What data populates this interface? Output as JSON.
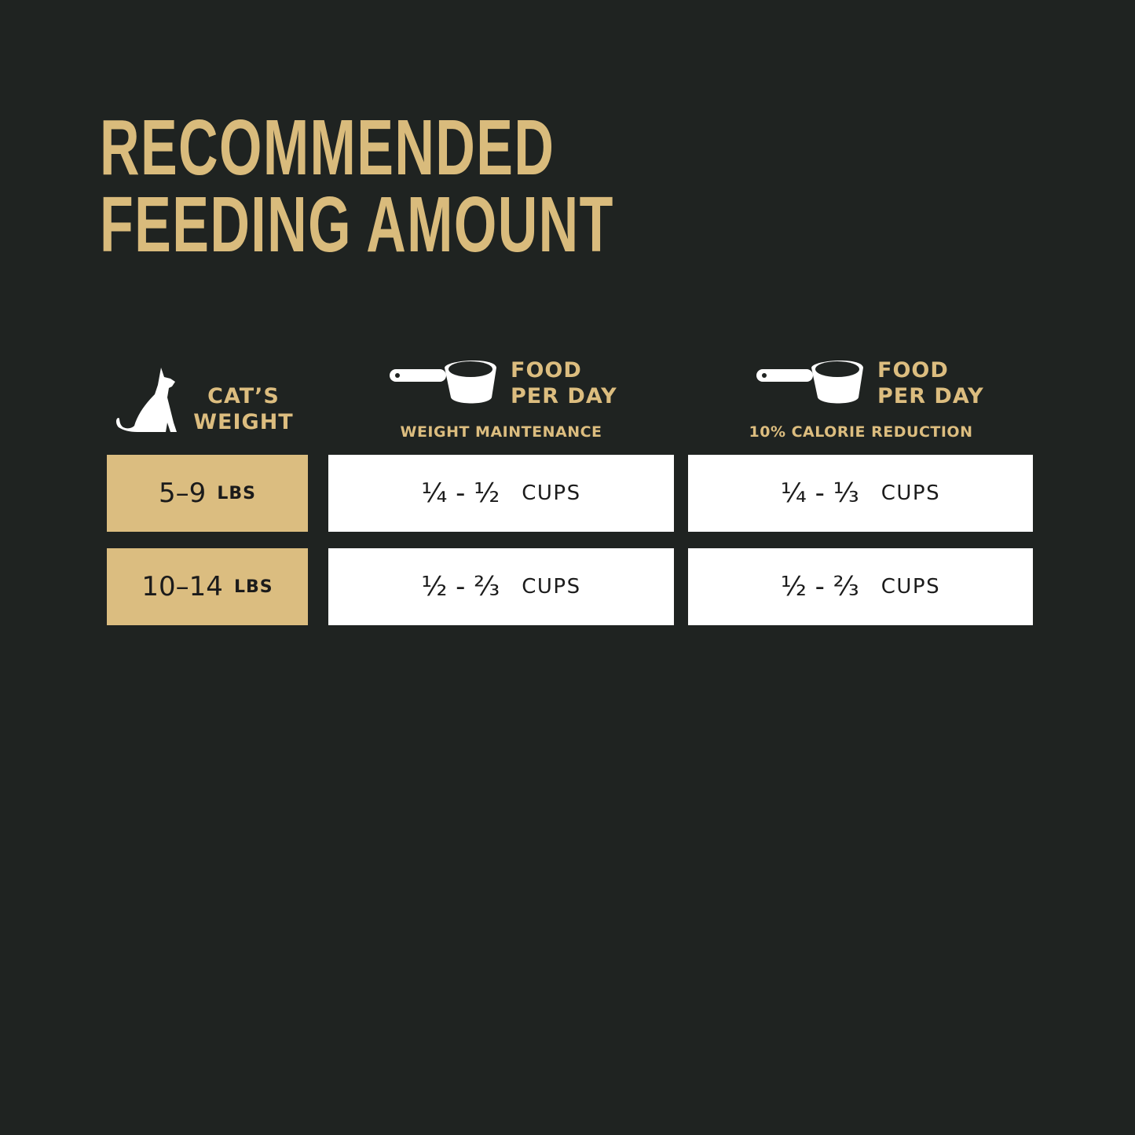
{
  "title": {
    "line1": "RECOMMENDED",
    "line2": "FEEDING AMOUNT"
  },
  "colors": {
    "background": "#1f2321",
    "gold": "#dbbd80",
    "cell": "#ffffff"
  },
  "headers": {
    "weight": {
      "icon": "cat-icon",
      "line1": "CAT’S",
      "line2": "WEIGHT"
    },
    "maintenance": {
      "icon": "measuring-scoop-icon",
      "line1": "FOOD",
      "line2": "PER DAY",
      "subtitle": "WEIGHT MAINTENANCE"
    },
    "reduction": {
      "icon": "measuring-scoop-icon",
      "line1": "FOOD",
      "line2": "PER DAY",
      "subtitle": "10% CALORIE REDUCTION"
    }
  },
  "rows": [
    {
      "weight": "5–9",
      "unit": "LBS",
      "maintenance": "¼ - ½",
      "reduction": "¼ - ⅓",
      "cups": "CUPS"
    },
    {
      "weight": "10–14",
      "unit": "LBS",
      "maintenance": "½ - ⅔",
      "reduction": "½ - ⅔",
      "cups": "CUPS"
    }
  ]
}
